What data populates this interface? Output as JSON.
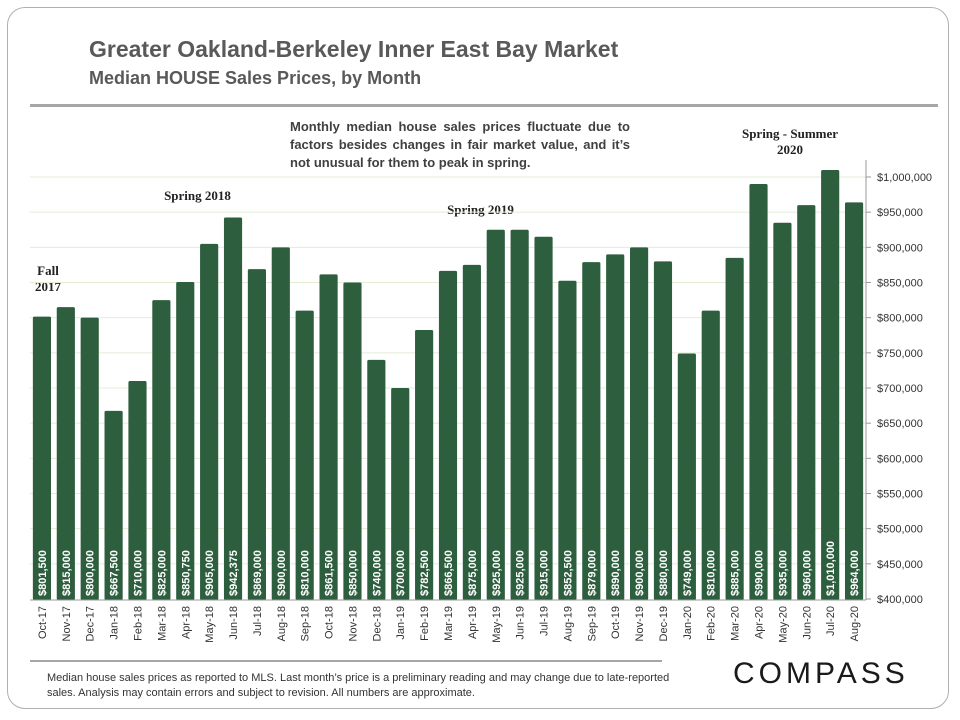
{
  "header": {
    "title": "Greater Oakland-Berkeley Inner East Bay Market",
    "subtitle": "Median HOUSE Sales Prices, by Month"
  },
  "note": "Monthly median house sales prices fluctuate due to factors besides changes in fair market value, and it’s not unusual for them to peak in spring.",
  "annotations": {
    "fall_2017": "Fall 2017",
    "spring_2018": "Spring 2018",
    "spring_2019": "Spring 2019",
    "spring_summer_2020": "Spring - Summer 2020"
  },
  "footnote": "Median house sales prices as reported to MLS. Last month’s price is a preliminary reading and may change due to late-reported sales. Analysis may contain errors and subject to revision. All numbers are approximate.",
  "logo": "COMPASS",
  "colors": {
    "bar": "#2d5e3e",
    "grid": "#e4ecd5",
    "text": "#595959"
  },
  "chart_data": {
    "type": "bar",
    "title": "Greater Oakland-Berkeley Inner East Bay Market",
    "subtitle": "Median HOUSE Sales Prices, by Month",
    "categories": [
      "Oct-17",
      "Nov-17",
      "Dec-17",
      "Jan-18",
      "Feb-18",
      "Mar-18",
      "Apr-18",
      "May-18",
      "Jun-18",
      "Jul-18",
      "Aug-18",
      "Sep-18",
      "Oct-18",
      "Nov-18",
      "Dec-18",
      "Jan-19",
      "Feb-19",
      "Mar-19",
      "Apr-19",
      "May-19",
      "Jun-19",
      "Jul-19",
      "Aug-19",
      "Sep-19",
      "Oct-19",
      "Nov-19",
      "Dec-19",
      "Jan-20",
      "Feb-20",
      "Mar-20",
      "Apr-20",
      "May-20",
      "Jun-20",
      "Jul-20",
      "Aug-20"
    ],
    "values": [
      801500,
      815000,
      800000,
      667500,
      710000,
      825000,
      850750,
      905000,
      942375,
      869000,
      900000,
      810000,
      861500,
      850000,
      740000,
      700000,
      782500,
      866500,
      875000,
      925000,
      925000,
      915000,
      852500,
      879000,
      890000,
      900000,
      880000,
      749000,
      810000,
      885000,
      990000,
      935000,
      960000,
      1010000,
      964000
    ],
    "labels": [
      "$801,500",
      "$815,000",
      "$800,000",
      "$667,500",
      "$710,000",
      "$825,000",
      "$850,750",
      "$905,000",
      "$942,375",
      "$869,000",
      "$900,000",
      "$810,000",
      "$861,500",
      "$850,000",
      "$740,000",
      "$700,000",
      "$782,500",
      "$866,500",
      "$875,000",
      "$925,000",
      "$925,000",
      "$915,000",
      "$852,500",
      "$879,000",
      "$890,000",
      "$900,000",
      "$880,000",
      "$749,000",
      "$810,000",
      "$885,000",
      "$990,000",
      "$935,000",
      "$960,000",
      "$1,010,000",
      "$964,000"
    ],
    "ylim": [
      400000,
      1000000
    ],
    "yticks": [
      400000,
      450000,
      500000,
      550000,
      600000,
      650000,
      700000,
      750000,
      800000,
      850000,
      900000,
      950000,
      1000000
    ],
    "ytick_labels": [
      "$400,000",
      "$450,000",
      "$500,000",
      "$550,000",
      "$600,000",
      "$650,000",
      "$700,000",
      "$750,000",
      "$800,000",
      "$850,000",
      "$900,000",
      "$950,000",
      "$1,000,000"
    ],
    "yaxis_side": "right",
    "grid": true
  }
}
